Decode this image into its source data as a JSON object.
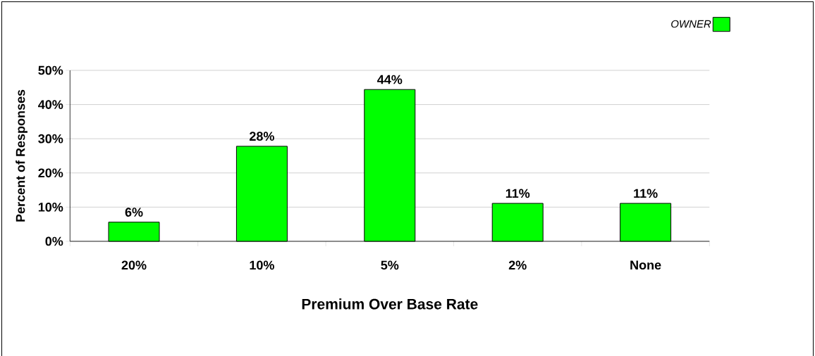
{
  "chart_data": {
    "type": "bar",
    "xlabel": "Premium Over Base Rate",
    "ylabel": "Percent of Responses",
    "categories": [
      "20%",
      "10%",
      "5%",
      "2%",
      "None"
    ],
    "series": [
      {
        "name": "OWNER",
        "color": "#00ff00",
        "values": [
          5.6,
          27.8,
          44.4,
          11.1,
          11.1
        ],
        "value_labels": [
          "6%",
          "28%",
          "44%",
          "11%",
          "11%"
        ]
      }
    ],
    "ylim": [
      0,
      50
    ],
    "yticks": [
      {
        "value": 0,
        "label": "0%"
      },
      {
        "value": 10,
        "label": "10%"
      },
      {
        "value": 20,
        "label": "20%"
      },
      {
        "value": 30,
        "label": "30%"
      },
      {
        "value": 40,
        "label": "40%"
      },
      {
        "value": 50,
        "label": "50%"
      }
    ],
    "grid": "y",
    "legend": "top right"
  }
}
